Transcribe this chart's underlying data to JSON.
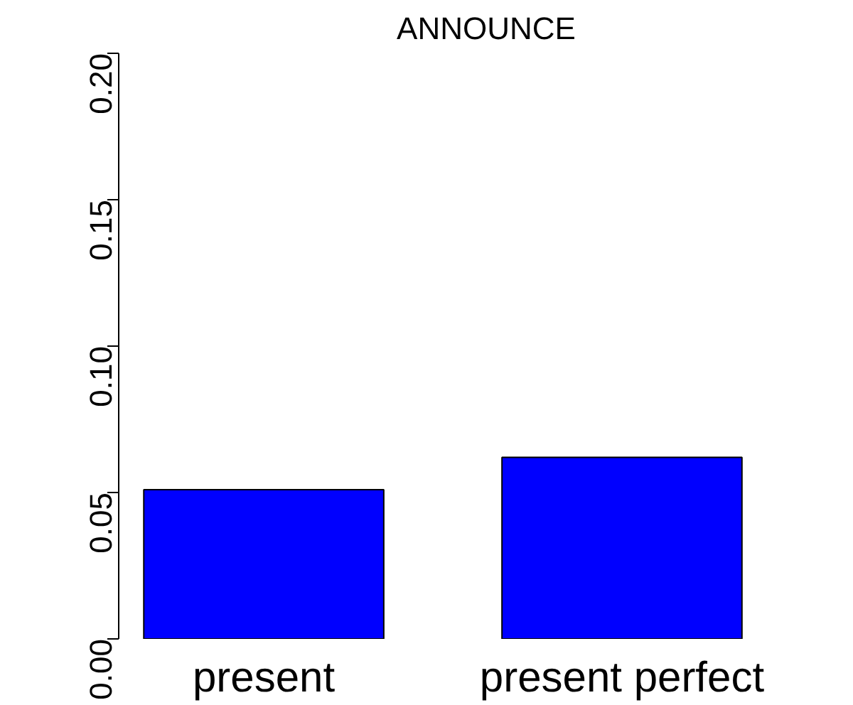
{
  "chart_data": {
    "type": "bar",
    "title": "ANNOUNCE",
    "categories": [
      "present",
      "present perfect"
    ],
    "values": [
      0.051,
      0.062
    ],
    "color": "#0000ff",
    "ylim": [
      0,
      0.2
    ],
    "yticks": [
      {
        "value": 0,
        "label": "0.00"
      },
      {
        "value": 0.05,
        "label": "0.05"
      },
      {
        "value": 0.1,
        "label": "0.10"
      },
      {
        "value": 0.15,
        "label": "0.15"
      },
      {
        "value": 0.2,
        "label": "0.20"
      }
    ],
    "grid": false
  }
}
